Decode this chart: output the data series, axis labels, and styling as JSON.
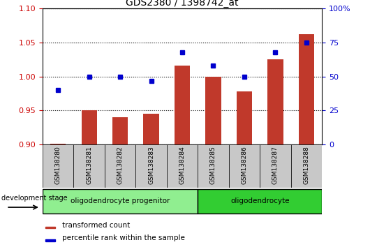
{
  "title": "GDS2380 / 1398742_at",
  "samples": [
    "GSM138280",
    "GSM138281",
    "GSM138282",
    "GSM138283",
    "GSM138284",
    "GSM138285",
    "GSM138286",
    "GSM138287",
    "GSM138288"
  ],
  "transformed_count": [
    0.901,
    0.95,
    0.94,
    0.945,
    1.016,
    1.0,
    0.978,
    1.025,
    1.062
  ],
  "percentile_rank": [
    40,
    50,
    50,
    47,
    68,
    58,
    50,
    68,
    75
  ],
  "ylim_left": [
    0.9,
    1.1
  ],
  "ylim_right": [
    0,
    100
  ],
  "yticks_left": [
    0.9,
    0.95,
    1.0,
    1.05,
    1.1
  ],
  "yticks_right": [
    0,
    25,
    50,
    75,
    100
  ],
  "groups": [
    {
      "label": "oligodendrocyte progenitor",
      "start": 0,
      "end": 5,
      "color": "#90EE90"
    },
    {
      "label": "oligodendrocyte",
      "start": 5,
      "end": 9,
      "color": "#32CD32"
    }
  ],
  "bar_color": "#C0392B",
  "marker_color": "#0000CD",
  "bar_width": 0.5,
  "base_value": 0.9,
  "tick_area_color": "#C8C8C8",
  "legend_tc": "transformed count",
  "legend_pr": "percentile rank within the sample",
  "dev_stage_label": "development stage",
  "left_axis_color": "#CC0000",
  "right_axis_color": "#0000CD",
  "title_fontsize": 10
}
